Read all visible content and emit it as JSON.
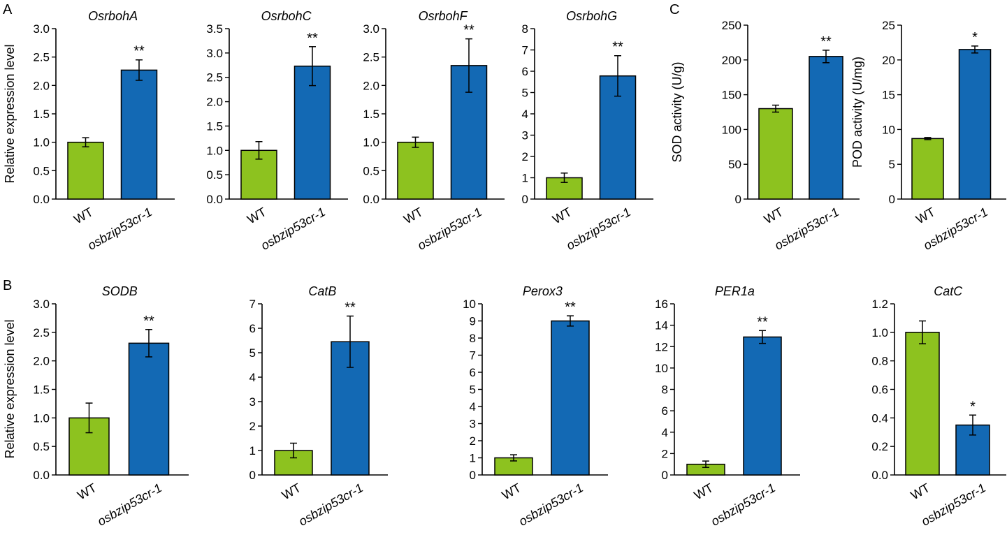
{
  "panel_labels": [
    "A",
    "B",
    "C"
  ],
  "ylabels": {
    "A": "Relative expression level",
    "B": "Relative expression level"
  },
  "colors": {
    "wt": "#8DC21F",
    "mutant": "#1369B4",
    "outline": "#000000"
  },
  "categories": [
    "WT",
    "osbzip53cr-1"
  ],
  "chart_data": [
    {
      "type": "bar",
      "panel": "A",
      "title": "OsrbohA",
      "ylabel": "Relative expression level",
      "categories": [
        "WT",
        "osbzip53cr-1"
      ],
      "values": [
        1.0,
        2.27
      ],
      "errors": [
        0.08,
        0.18
      ],
      "significance": [
        "",
        "**"
      ],
      "ylim": [
        0,
        3.0
      ],
      "yticks": [
        0,
        0.5,
        1.0,
        1.5,
        2.0,
        2.5,
        3.0
      ],
      "yticklabels": [
        "0.0",
        "0.5",
        "1.0",
        "1.5",
        "2.0",
        "2.5",
        "3.0"
      ]
    },
    {
      "type": "bar",
      "panel": "A",
      "title": "OsrbohC",
      "ylabel": "",
      "categories": [
        "WT",
        "osbzip53cr-1"
      ],
      "values": [
        1.0,
        2.73
      ],
      "errors": [
        0.18,
        0.4
      ],
      "significance": [
        "",
        "**"
      ],
      "ylim": [
        0,
        3.5
      ],
      "yticks": [
        0,
        0.5,
        1.0,
        1.5,
        2.0,
        2.5,
        3.0,
        3.5
      ],
      "yticklabels": [
        "0.0",
        "0.5",
        "1.0",
        "1.5",
        "2.0",
        "2.5",
        "3.0",
        "3.5"
      ]
    },
    {
      "type": "bar",
      "panel": "A",
      "title": "OsrbohF",
      "ylabel": "",
      "categories": [
        "WT",
        "osbzip53cr-1"
      ],
      "values": [
        1.0,
        2.35
      ],
      "errors": [
        0.09,
        0.47
      ],
      "significance": [
        "",
        "**"
      ],
      "ylim": [
        0,
        3.0
      ],
      "yticks": [
        0,
        0.5,
        1.0,
        1.5,
        2.0,
        2.5,
        3.0
      ],
      "yticklabels": [
        "0.0",
        "0.5",
        "1.0",
        "1.5",
        "2.0",
        "2.5",
        "3.0"
      ]
    },
    {
      "type": "bar",
      "panel": "A",
      "title": "OsrbohG",
      "ylabel": "",
      "categories": [
        "WT",
        "osbzip53cr-1"
      ],
      "values": [
        1.0,
        5.78
      ],
      "errors": [
        0.22,
        0.95
      ],
      "significance": [
        "",
        "**"
      ],
      "ylim": [
        0,
        8
      ],
      "yticks": [
        0,
        1,
        2,
        3,
        4,
        5,
        6,
        7,
        8
      ],
      "yticklabels": [
        "0",
        "1",
        "2",
        "3",
        "4",
        "5",
        "6",
        "7",
        "8"
      ]
    },
    {
      "type": "bar",
      "panel": "C",
      "title": "",
      "ylabel": "SOD activity (U/g)",
      "categories": [
        "WT",
        "osbzip53cr-1"
      ],
      "values": [
        130,
        205
      ],
      "errors": [
        5,
        9
      ],
      "significance": [
        "",
        "**"
      ],
      "ylim": [
        0,
        250
      ],
      "yticks": [
        0,
        50,
        100,
        150,
        200,
        250
      ],
      "yticklabels": [
        "0",
        "50",
        "100",
        "150",
        "200",
        "250"
      ]
    },
    {
      "type": "bar",
      "panel": "C",
      "title": "",
      "ylabel": "POD activity (U/mg)",
      "categories": [
        "WT",
        "osbzip53cr-1"
      ],
      "values": [
        8.7,
        21.5
      ],
      "errors": [
        0.15,
        0.5
      ],
      "significance": [
        "",
        "*"
      ],
      "ylim": [
        0,
        25
      ],
      "yticks": [
        0,
        5,
        10,
        15,
        20,
        25
      ],
      "yticklabels": [
        "0",
        "5",
        "10",
        "15",
        "20",
        "25"
      ]
    },
    {
      "type": "bar",
      "panel": "B",
      "title": "SODB",
      "ylabel": "Relative expression level",
      "categories": [
        "WT",
        "osbzip53cr-1"
      ],
      "values": [
        1.0,
        2.31
      ],
      "errors": [
        0.26,
        0.24
      ],
      "significance": [
        "",
        "**"
      ],
      "ylim": [
        0,
        3.0
      ],
      "yticks": [
        0,
        0.5,
        1.0,
        1.5,
        2.0,
        2.5,
        3.0
      ],
      "yticklabels": [
        "0.0",
        "0.5",
        "1.0",
        "1.5",
        "2.0",
        "2.5",
        "3.0"
      ]
    },
    {
      "type": "bar",
      "panel": "B",
      "title": "CatB",
      "ylabel": "",
      "categories": [
        "WT",
        "osbzip53cr-1"
      ],
      "values": [
        1.0,
        5.45
      ],
      "errors": [
        0.3,
        1.05
      ],
      "significance": [
        "",
        "**"
      ],
      "ylim": [
        0,
        7
      ],
      "yticks": [
        0,
        1,
        2,
        3,
        4,
        5,
        6,
        7
      ],
      "yticklabels": [
        "0",
        "1",
        "2",
        "3",
        "4",
        "5",
        "6",
        "7"
      ]
    },
    {
      "type": "bar",
      "panel": "B",
      "title": "Perox3",
      "ylabel": "",
      "categories": [
        "WT",
        "osbzip53cr-1"
      ],
      "values": [
        1.0,
        9.0
      ],
      "errors": [
        0.18,
        0.3
      ],
      "significance": [
        "",
        "**"
      ],
      "ylim": [
        0,
        10
      ],
      "yticks": [
        0,
        1,
        2,
        3,
        4,
        5,
        6,
        7,
        8,
        9,
        10
      ],
      "yticklabels": [
        "0",
        "1",
        "2",
        "3",
        "4",
        "5",
        "6",
        "7",
        "8",
        "9",
        "10"
      ]
    },
    {
      "type": "bar",
      "panel": "B",
      "title": "PER1a",
      "ylabel": "",
      "categories": [
        "WT",
        "osbzip53cr-1"
      ],
      "values": [
        1.0,
        12.9
      ],
      "errors": [
        0.3,
        0.6
      ],
      "significance": [
        "",
        "**"
      ],
      "ylim": [
        0,
        16
      ],
      "yticks": [
        0,
        2,
        4,
        6,
        8,
        10,
        12,
        14,
        16
      ],
      "yticklabels": [
        "0",
        "2",
        "4",
        "6",
        "8",
        "10",
        "12",
        "14",
        "16"
      ]
    },
    {
      "type": "bar",
      "panel": "B",
      "title": "CatC",
      "ylabel": "",
      "categories": [
        "WT",
        "osbzip53cr-1"
      ],
      "values": [
        1.0,
        0.35
      ],
      "errors": [
        0.08,
        0.07
      ],
      "significance": [
        "",
        "*"
      ],
      "ylim": [
        0,
        1.2
      ],
      "yticks": [
        0,
        0.2,
        0.4,
        0.6,
        0.8,
        1.0,
        1.2
      ],
      "yticklabels": [
        "0.0",
        "0.2",
        "0.4",
        "0.6",
        "0.8",
        "1.0",
        "1.2"
      ]
    }
  ]
}
